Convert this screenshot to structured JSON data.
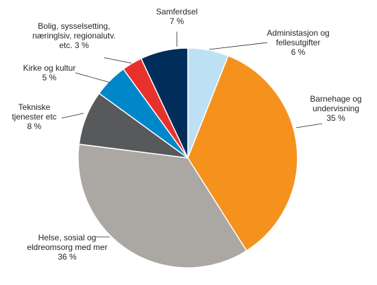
{
  "chart_data": {
    "type": "pie",
    "unit": "%",
    "slices": [
      {
        "lines": [
          "Administasjon og",
          "fellesutgifter"
        ],
        "value": 6,
        "value_label": "6 %",
        "color": "#bde0f5"
      },
      {
        "lines": [
          "Barnehage og",
          "undervisning"
        ],
        "value": 35,
        "value_label": "35 %",
        "color": "#f5921e"
      },
      {
        "lines": [
          "Helse, sosial og",
          "eldreomsorg med mer"
        ],
        "value": 36,
        "value_label": "36 %",
        "color": "#aba7a3"
      },
      {
        "lines": [
          "Tekniske",
          "tjenester etc"
        ],
        "value": 8,
        "value_label": "8 %",
        "color": "#58595b"
      },
      {
        "lines": [
          "Kirke og kultur"
        ],
        "value": 5,
        "value_label": "5 %",
        "color": "#0087c9"
      },
      {
        "lines": [
          "Bolig, sysselsetting,",
          "næringlsiv, regionalutv.",
          "etc."
        ],
        "value": 3,
        "value_label": "3 %",
        "color": "#e8312d"
      },
      {
        "lines": [
          "Samferdsel"
        ],
        "value": 7,
        "value_label": "7 %",
        "color": "#012d5a"
      }
    ]
  }
}
